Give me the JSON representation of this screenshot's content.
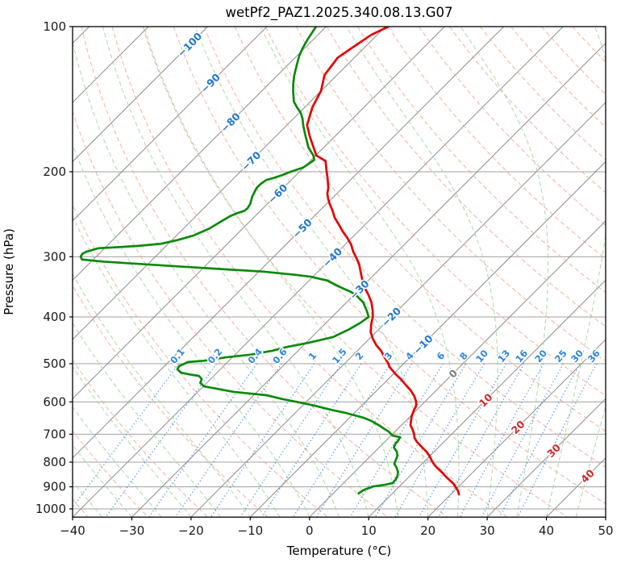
{
  "title": "wetPf2_PAZ1.2025.340.08.13.G07",
  "chart_data": {
    "type": "line",
    "projection": "skew-T log-p, 45 degree skew",
    "title": "wetPf2_PAZ1.2025.340.08.13.G07",
    "xlabel": "Temperature (°C)",
    "ylabel": "Pressure (hPa)",
    "x_range": [
      -40,
      50
    ],
    "x_ticks": [
      -40,
      -30,
      -20,
      -10,
      0,
      10,
      20,
      30,
      40,
      50
    ],
    "y_ticks_hPa": [
      100,
      200,
      300,
      400,
      500,
      600,
      700,
      800,
      900,
      1000
    ],
    "pressure_range_hPa": [
      100,
      1040
    ],
    "grid": true,
    "legend": "none",
    "series": [
      {
        "name": "temperature",
        "units": "degC vs hPa",
        "points": [
          [
            100,
            -69.5
          ],
          [
            104,
            -71.0
          ],
          [
            111,
            -72.1
          ],
          [
            116,
            -72.8
          ],
          [
            126,
            -72.1
          ],
          [
            136,
            -70.0
          ],
          [
            147,
            -68.7
          ],
          [
            160,
            -66.6
          ],
          [
            169,
            -64.2
          ],
          [
            185,
            -59.9
          ],
          [
            190,
            -57.4
          ],
          [
            198,
            -55.8
          ],
          [
            206,
            -54.2
          ],
          [
            216,
            -52.4
          ],
          [
            222,
            -51.6
          ],
          [
            228,
            -50.5
          ],
          [
            233,
            -49.5
          ],
          [
            241,
            -47.8
          ],
          [
            249,
            -46.3
          ],
          [
            257,
            -44.5
          ],
          [
            266,
            -42.6
          ],
          [
            274,
            -40.8
          ],
          [
            283,
            -39.0
          ],
          [
            293,
            -37.4
          ],
          [
            302,
            -35.8
          ],
          [
            311,
            -34.3
          ],
          [
            320,
            -33.1
          ],
          [
            333,
            -31.4
          ],
          [
            346,
            -29.7
          ],
          [
            359,
            -27.7
          ],
          [
            373,
            -25.8
          ],
          [
            388,
            -24.2
          ],
          [
            400,
            -23.1
          ],
          [
            416,
            -22.0
          ],
          [
            430,
            -20.9
          ],
          [
            444,
            -19.4
          ],
          [
            458,
            -17.7
          ],
          [
            470,
            -16.0
          ],
          [
            485,
            -14.3
          ],
          [
            498,
            -12.8
          ],
          [
            508,
            -11.8
          ],
          [
            524,
            -9.8
          ],
          [
            538,
            -7.9
          ],
          [
            553,
            -6.1
          ],
          [
            568,
            -4.3
          ],
          [
            583,
            -2.8
          ],
          [
            599,
            -1.5
          ],
          [
            611,
            -0.8
          ],
          [
            625,
            -0.4
          ],
          [
            642,
            0.2
          ],
          [
            657,
            0.9
          ],
          [
            670,
            1.5
          ],
          [
            683,
            2.5
          ],
          [
            699,
            3.6
          ],
          [
            713,
            4.4
          ],
          [
            727,
            5.5
          ],
          [
            746,
            7.3
          ],
          [
            761,
            8.7
          ],
          [
            779,
            10.1
          ],
          [
            797,
            11.3
          ],
          [
            812,
            12.4
          ],
          [
            825,
            13.5
          ],
          [
            841,
            14.9
          ],
          [
            851,
            15.7
          ],
          [
            861,
            16.5
          ],
          [
            874,
            17.6
          ],
          [
            887,
            18.7
          ],
          [
            901,
            19.6
          ],
          [
            915,
            20.5
          ],
          [
            933,
            21.4
          ]
        ]
      },
      {
        "name": "dewpoint",
        "units": "degC vs hPa",
        "points": [
          [
            100,
            -81.7
          ],
          [
            106,
            -81.0
          ],
          [
            111,
            -80.3
          ],
          [
            115,
            -79.6
          ],
          [
            120,
            -78.5
          ],
          [
            126,
            -77.2
          ],
          [
            131,
            -76.0
          ],
          [
            136,
            -74.7
          ],
          [
            143,
            -72.8
          ],
          [
            147,
            -71.3
          ],
          [
            151,
            -69.7
          ],
          [
            155,
            -68.5
          ],
          [
            161,
            -67.0
          ],
          [
            169,
            -64.9
          ],
          [
            178,
            -62.6
          ],
          [
            185,
            -60.4
          ],
          [
            189,
            -59.5
          ],
          [
            193,
            -59.8
          ],
          [
            196,
            -60.1
          ],
          [
            200,
            -61.5
          ],
          [
            203,
            -62.3
          ],
          [
            206,
            -63.3
          ],
          [
            208,
            -64.2
          ],
          [
            212,
            -64.5
          ],
          [
            216,
            -64.5
          ],
          [
            225,
            -63.8
          ],
          [
            233,
            -62.9
          ],
          [
            238,
            -62.6
          ],
          [
            241,
            -62.7
          ],
          [
            244,
            -63.6
          ],
          [
            247,
            -64.2
          ],
          [
            252,
            -64.7
          ],
          [
            262,
            -65.6
          ],
          [
            271,
            -67.1
          ],
          [
            277,
            -69.0
          ],
          [
            282,
            -71.2
          ],
          [
            285,
            -74.9
          ],
          [
            287,
            -78.7
          ],
          [
            288,
            -81.0
          ],
          [
            293,
            -82.5
          ],
          [
            296,
            -82.8
          ],
          [
            300,
            -82.6
          ],
          [
            304,
            -81.9
          ],
          [
            307,
            -78.1
          ],
          [
            310,
            -72.5
          ],
          [
            313,
            -66.8
          ],
          [
            316,
            -61.0
          ],
          [
            319,
            -55.3
          ],
          [
            322,
            -49.4
          ],
          [
            327,
            -43.4
          ],
          [
            330,
            -40.4
          ],
          [
            336,
            -37.0
          ],
          [
            347,
            -33.6
          ],
          [
            355,
            -31.0
          ],
          [
            361,
            -29.5
          ],
          [
            373,
            -27.2
          ],
          [
            388,
            -25.2
          ],
          [
            400,
            -23.8
          ],
          [
            411,
            -24.2
          ],
          [
            424,
            -25.0
          ],
          [
            440,
            -26.4
          ],
          [
            452,
            -29.5
          ],
          [
            461,
            -32.4
          ],
          [
            470,
            -34.4
          ],
          [
            479,
            -37.4
          ],
          [
            485,
            -41.1
          ],
          [
            493,
            -44.2
          ],
          [
            496,
            -46.7
          ],
          [
            506,
            -47.5
          ],
          [
            514,
            -47.2
          ],
          [
            522,
            -46.0
          ],
          [
            526,
            -44.4
          ],
          [
            530,
            -42.5
          ],
          [
            538,
            -41.5
          ],
          [
            548,
            -41.1
          ],
          [
            557,
            -39.9
          ],
          [
            572,
            -33.9
          ],
          [
            581,
            -27.9
          ],
          [
            592,
            -24.5
          ],
          [
            601,
            -21.2
          ],
          [
            611,
            -17.9
          ],
          [
            623,
            -14.5
          ],
          [
            633,
            -11.3
          ],
          [
            640,
            -9.5
          ],
          [
            647,
            -7.7
          ],
          [
            657,
            -5.8
          ],
          [
            672,
            -3.6
          ],
          [
            683,
            -2.2
          ],
          [
            691,
            -1.1
          ],
          [
            705,
            0.3
          ],
          [
            710,
            1.8
          ],
          [
            724,
            2.1
          ],
          [
            732,
            2.1
          ],
          [
            746,
            2.5
          ],
          [
            761,
            3.7
          ],
          [
            776,
            4.5
          ],
          [
            791,
            4.9
          ],
          [
            806,
            5.3
          ],
          [
            822,
            6.4
          ],
          [
            838,
            7.3
          ],
          [
            854,
            7.9
          ],
          [
            870,
            8.2
          ],
          [
            884,
            8.3
          ],
          [
            891,
            7.3
          ],
          [
            898,
            5.6
          ],
          [
            915,
            4.5
          ],
          [
            929,
            4.3
          ]
        ]
      }
    ],
    "background": {
      "isobars_hPa": [
        100,
        200,
        300,
        400,
        500,
        600,
        700,
        800,
        900,
        1000
      ],
      "isotherms_C": {
        "start": -120,
        "end": 50,
        "step": 10
      },
      "dry_adiabats_C": {
        "start": -40,
        "end": 190,
        "step": 10
      },
      "moist_adiabats_start_C": {
        "start": -60,
        "end": 45,
        "step": 5
      },
      "mixing_ratio_g_kg": [
        0.1,
        0.2,
        0.4,
        0.6,
        1,
        1.5,
        2,
        3,
        4,
        6,
        8,
        10,
        13,
        16,
        20,
        25,
        30,
        36
      ],
      "mixing_label_pressure_hPa": 487,
      "isotherm_labels": [
        {
          "t": -100,
          "p": 109
        },
        {
          "t": -90,
          "p": 131
        },
        {
          "t": -80,
          "p": 158
        },
        {
          "t": -70,
          "p": 190
        },
        {
          "t": -60,
          "p": 222
        },
        {
          "t": -50,
          "p": 262
        },
        {
          "t": -40,
          "p": 301
        },
        {
          "t": -30,
          "p": 351
        },
        {
          "t": -20,
          "p": 400
        },
        {
          "t": -10,
          "p": 456
        },
        {
          "t": 0,
          "p": 524
        },
        {
          "t": 10,
          "p": 595
        },
        {
          "t": 20,
          "p": 677
        },
        {
          "t": 30,
          "p": 757
        },
        {
          "t": 40,
          "p": 855
        }
      ]
    },
    "colors": {
      "temperature": "#e60000",
      "dewpoint": "#0a8a0a",
      "isobar": "#a0a0a0",
      "isotherm": "#8c8c8c",
      "dry_adiabat": "#f5a28f",
      "moist_adiabat": "#a2d5a2",
      "mixing_ratio": "#2e86e0",
      "cold_label": "#2176d2",
      "zero_label": "#7f7f7f",
      "warm_label": "#d62728",
      "spine": "#000000",
      "tick_label": "#1a1a1a"
    }
  }
}
